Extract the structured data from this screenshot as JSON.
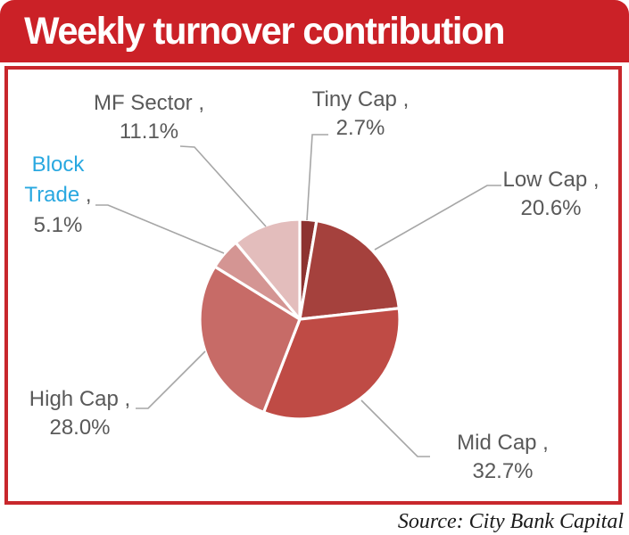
{
  "header": {
    "title": "Weekly turnover contribution",
    "bg_color": "#cb2127",
    "text_color": "#ffffff"
  },
  "frame": {
    "border_color": "#c8272c"
  },
  "source": {
    "text": "Source: City Bank Capital"
  },
  "chart_data": {
    "type": "pie",
    "title": "Weekly turnover contribution",
    "start_angle_deg": 0,
    "direction": "clockwise",
    "values_unit": "%",
    "legend": "none",
    "background": "#ffffff",
    "leader_line_color": "#a6a6a6",
    "label_text_color": "#595959",
    "slice_border_color": "#ffffff",
    "slices": [
      {
        "label": "Tiny Cap",
        "value_pct": 2.7,
        "color": "#8d3230",
        "label_display": "Tiny Cap ,",
        "pct_display": "2.7%"
      },
      {
        "label": "Low Cap",
        "value_pct": 20.6,
        "color": "#a5413d",
        "label_display": "Low Cap ,",
        "pct_display": "20.6%"
      },
      {
        "label": "Mid Cap",
        "value_pct": 32.7,
        "color": "#bf4b45",
        "label_display": "Mid Cap ,",
        "pct_display": "32.7%"
      },
      {
        "label": "High Cap",
        "value_pct": 28.0,
        "color": "#c76b67",
        "label_display": "High Cap ,",
        "pct_display": "28.0%"
      },
      {
        "label": "Block Trade",
        "value_pct": 5.1,
        "color": "#d49593",
        "label_color": "#29a8e0",
        "word1": "Block",
        "word2": "Trade",
        "comma": " ,",
        "label_display": "Block Trade ,",
        "pct_display": "5.1%"
      },
      {
        "label": "MF Sector",
        "value_pct": 11.1,
        "color": "#e3bdbc",
        "label_display": "MF Sector ,",
        "pct_display": "11.1%"
      }
    ]
  }
}
